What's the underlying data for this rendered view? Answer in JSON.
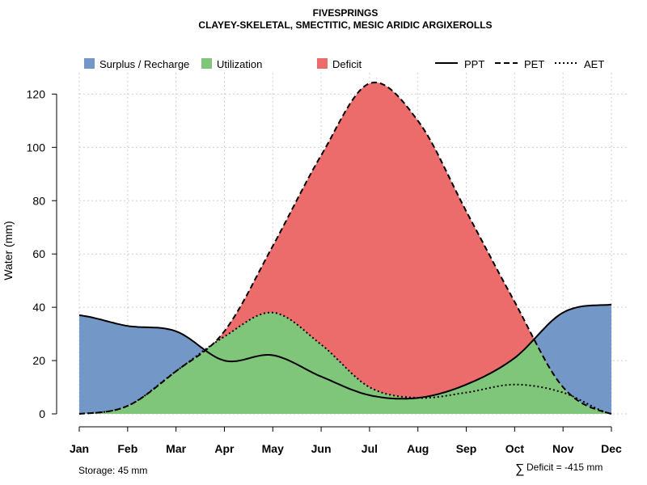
{
  "chart_data": {
    "type": "area",
    "title": "FIVESPRINGS",
    "subtitle": "CLAYEY-SKELETAL, SMECTITIC, MESIC ARIDIC ARGIXEROLLS",
    "xlabel": "",
    "ylabel": "Water (mm)",
    "categories": [
      "Jan",
      "Feb",
      "Mar",
      "Apr",
      "May",
      "Jun",
      "Jul",
      "Aug",
      "Sep",
      "Oct",
      "Nov",
      "Dec"
    ],
    "ylim": [
      0,
      128
    ],
    "yticks": [
      0,
      20,
      40,
      60,
      80,
      100,
      120
    ],
    "grid": true,
    "series": [
      {
        "name": "PPT",
        "style": "solid",
        "values": [
          37,
          33,
          31,
          20,
          22,
          14,
          7,
          6,
          11,
          21,
          38,
          41
        ]
      },
      {
        "name": "PET",
        "style": "dashed",
        "values": [
          0,
          3,
          16,
          31,
          63,
          97,
          124,
          110,
          76,
          42,
          10,
          0
        ]
      },
      {
        "name": "AET",
        "style": "dotted",
        "values": [
          0,
          3,
          16,
          29,
          38,
          26,
          10,
          6,
          8,
          11,
          8,
          0
        ]
      }
    ],
    "legend": [
      {
        "label": "Surplus / Recharge",
        "color": "#7398c8",
        "kind": "box"
      },
      {
        "label": "Utilization",
        "color": "#80c67a",
        "kind": "box"
      },
      {
        "label": "Deficit",
        "color": "#ec6b6b",
        "kind": "box"
      },
      {
        "label": "PPT",
        "kind": "line",
        "style": "solid"
      },
      {
        "label": "PET",
        "kind": "line",
        "style": "dashed"
      },
      {
        "label": "AET",
        "kind": "line",
        "style": "dotted"
      }
    ],
    "legend_position": "top",
    "colors": {
      "surplus": "#7398c8",
      "utilization": "#80c67a",
      "deficit": "#ec6b6b"
    },
    "annotations": {
      "storage": "Storage: 45 mm",
      "deficit_symbol": "∑",
      "deficit": "Deficit = -415 mm"
    }
  }
}
